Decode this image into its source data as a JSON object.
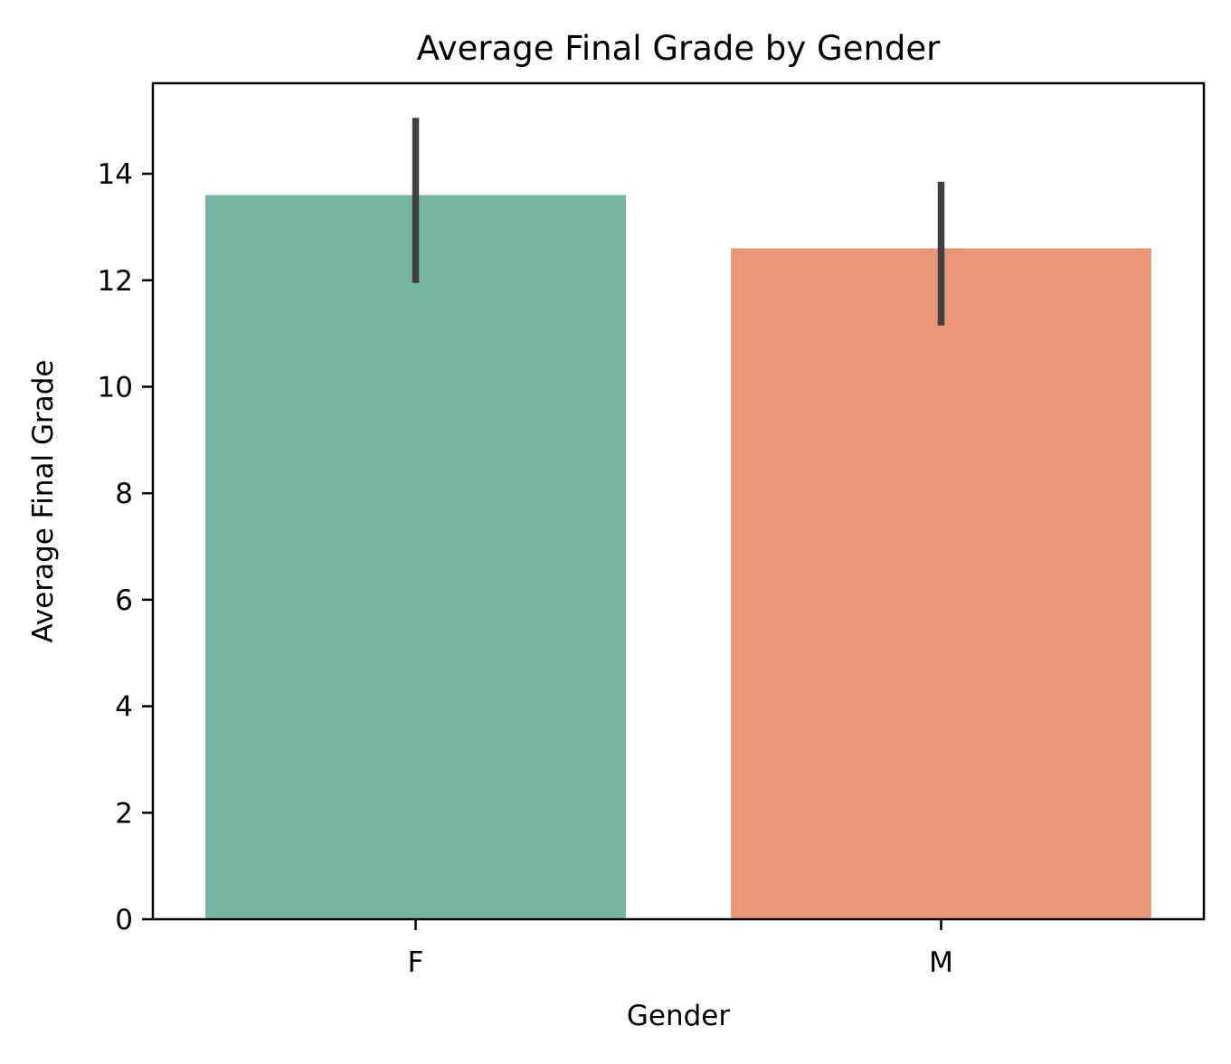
{
  "chart_data": {
    "type": "bar",
    "title": "Average Final Grade by Gender",
    "xlabel": "Gender",
    "ylabel": "Average Final Grade",
    "categories": [
      "F",
      "M"
    ],
    "values": [
      13.6,
      12.6
    ],
    "error_bars": [
      {
        "low": 11.95,
        "high": 15.05
      },
      {
        "low": 11.15,
        "high": 13.85
      }
    ],
    "colors": [
      "#76b5a1",
      "#e89676"
    ],
    "error_bar_color": "#404040",
    "ylim": [
      0,
      15.7
    ],
    "yticks": [
      "0",
      "2",
      "4",
      "6",
      "8",
      "10",
      "12",
      "14"
    ],
    "grid": false,
    "legend": "none"
  }
}
